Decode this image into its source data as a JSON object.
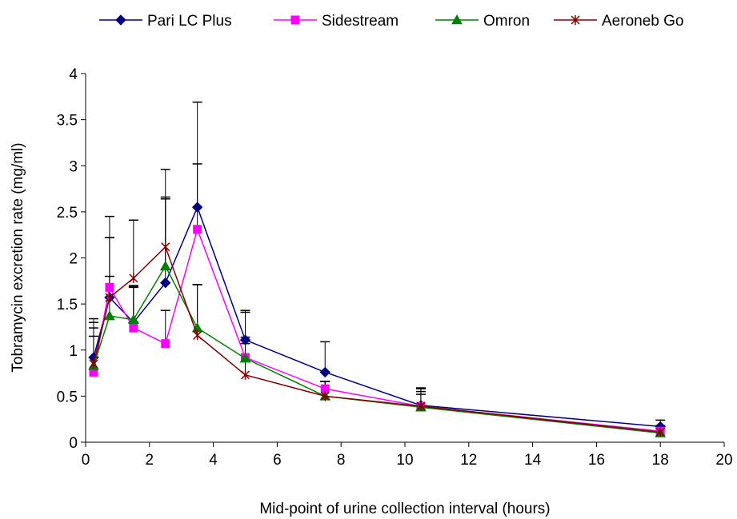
{
  "chart_data": {
    "type": "line",
    "xlabel": "Mid-point of urine collection interval (hours)",
    "ylabel": "Tobramycin excretion rate (mg/ml)",
    "xlim": [
      0,
      20
    ],
    "ylim": [
      0,
      4
    ],
    "x_ticks": [
      0,
      2,
      4,
      6,
      8,
      10,
      12,
      14,
      16,
      18,
      20
    ],
    "y_ticks": [
      0,
      0.5,
      1,
      1.5,
      2,
      2.5,
      3,
      3.5,
      4
    ],
    "y_tick_labels": [
      "0",
      "0.5",
      "1",
      "1.5",
      "2",
      "2.5",
      "3",
      "3.5",
      "4"
    ],
    "grid": false,
    "legend_position": "top",
    "series": [
      {
        "name": "Pari LC Plus",
        "color": "#000080",
        "marker": "diamond",
        "x": [
          0.25,
          0.75,
          1.5,
          2.5,
          3.5,
          5,
          7.5,
          10.5,
          18
        ],
        "y": [
          0.92,
          1.57,
          1.3,
          1.73,
          2.55,
          1.11,
          0.76,
          0.4,
          0.17
        ],
        "error": [
          0.42,
          0.65,
          0.4,
          0.93,
          1.14,
          0.32,
          0.33,
          0.18,
          0.07
        ]
      },
      {
        "name": "Sidestream",
        "color": "#ff00ff",
        "marker": "square",
        "x": [
          0.25,
          0.75,
          1.5,
          2.5,
          3.5,
          5,
          7.5,
          10.5,
          18
        ],
        "y": [
          0.76,
          1.68,
          1.24,
          1.07,
          2.31,
          0.92,
          0.58,
          0.39,
          0.12
        ],
        "error": [
          0.48,
          0.54,
          0.44,
          0.36,
          0.71,
          0.49,
          0.08,
          0.16,
          0.06
        ]
      },
      {
        "name": "Omron",
        "color": "#008000",
        "marker": "triangle",
        "x": [
          0.25,
          0.75,
          1.5,
          2.5,
          3.5,
          5,
          7.5,
          10.5,
          18
        ],
        "y": [
          0.83,
          1.37,
          1.33,
          1.91,
          1.24,
          0.91,
          0.5,
          0.38,
          0.1
        ],
        "error": [
          0.32,
          0.43,
          0.36,
          0.73,
          0.47,
          0.16,
          0.16,
          0.14,
          0.05
        ]
      },
      {
        "name": "Aeroneb Go",
        "color": "#800000",
        "marker": "asterisk",
        "x": [
          0.25,
          0.75,
          1.5,
          2.5,
          3.5,
          5,
          7.5,
          10.5,
          18
        ],
        "y": [
          0.85,
          1.57,
          1.78,
          2.12,
          1.16,
          0.73,
          0.5,
          0.39,
          0.11
        ],
        "error": [
          0.45,
          0.88,
          0.63,
          0.84,
          0.55,
          0.41,
          0.16,
          0.2,
          0.07
        ]
      }
    ]
  }
}
